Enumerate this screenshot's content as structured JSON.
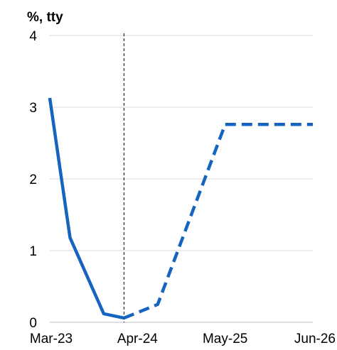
{
  "chart_data": {
    "type": "line",
    "unit_label": "%, tty",
    "ylim": [
      0,
      4
    ],
    "y_ticks": [
      "0",
      "1",
      "2",
      "3",
      "4"
    ],
    "x_ticks": [
      "Mar-23",
      "Apr-24",
      "May-25",
      "Jun-26"
    ],
    "grid": "horizontal",
    "vertical_marker_at": "Feb-24",
    "series": [
      {
        "style": "solid",
        "color": "#1565c0",
        "points": [
          {
            "x": "Mar-23",
            "y": 3.13
          },
          {
            "x": "Jun-23",
            "y": 1.18
          },
          {
            "x": "Nov-23",
            "y": 0.12
          },
          {
            "x": "Feb-24",
            "y": 0.06
          }
        ]
      },
      {
        "style": "dashed",
        "color": "#1565c0",
        "points": [
          {
            "x": "Feb-24",
            "y": 0.06
          },
          {
            "x": "Jul-24",
            "y": 0.25
          },
          {
            "x": "May-25",
            "y": 2.76
          },
          {
            "x": "Jun-26",
            "y": 2.76
          }
        ]
      }
    ]
  }
}
